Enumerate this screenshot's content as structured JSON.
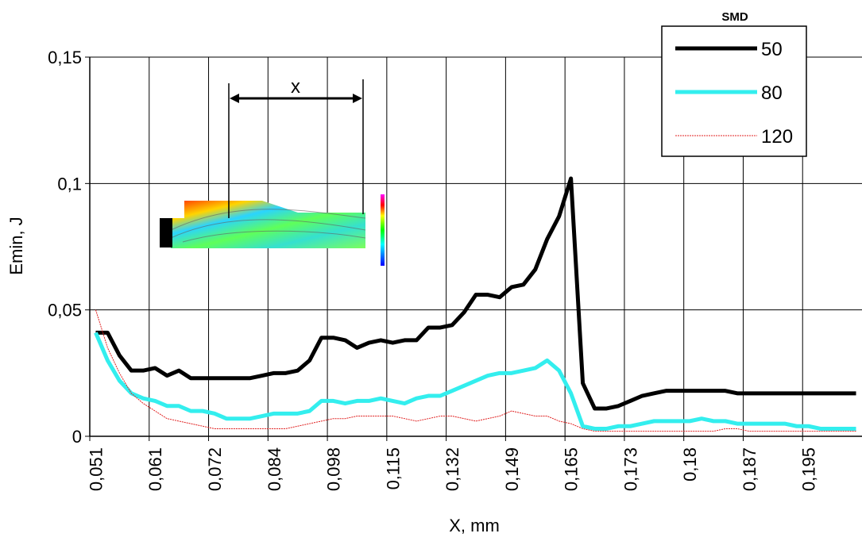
{
  "chart_data": {
    "type": "line",
    "y_label": "Emin, J",
    "x_label": "X, mm",
    "legend_title": "SMD",
    "legend": "upper-right",
    "annotation": "x",
    "grid": true,
    "categories": [
      "0,051",
      null,
      null,
      null,
      null,
      "0,061",
      null,
      null,
      null,
      null,
      "0,072",
      null,
      null,
      null,
      null,
      "0,084",
      null,
      null,
      null,
      null,
      "0,098",
      null,
      null,
      null,
      null,
      "0,115",
      null,
      null,
      null,
      null,
      "0,132",
      null,
      null,
      null,
      null,
      "0,149",
      null,
      null,
      null,
      null,
      "0,165",
      null,
      null,
      null,
      null,
      "0,173",
      null,
      null,
      null,
      null,
      "0,18",
      null,
      null,
      null,
      null,
      "0,187",
      null,
      null,
      null,
      null,
      "0,195",
      null,
      null,
      null,
      null
    ],
    "ylim": [
      0,
      0.15
    ],
    "yticks": [
      {
        "value": 0,
        "label": "0"
      },
      {
        "value": 0.05,
        "label": "0,05"
      },
      {
        "value": 0.1,
        "label": "0,1"
      },
      {
        "value": 0.15,
        "label": "0,15"
      }
    ],
    "series": [
      {
        "name": "50",
        "color": "#000000",
        "width": 5,
        "values": [
          0.041,
          0.041,
          0.032,
          0.026,
          0.026,
          0.027,
          0.024,
          0.026,
          0.023,
          0.023,
          0.023,
          0.023,
          0.023,
          0.023,
          0.024,
          0.025,
          0.025,
          0.026,
          0.03,
          0.039,
          0.039,
          0.038,
          0.035,
          0.037,
          0.038,
          0.037,
          0.038,
          0.038,
          0.043,
          0.043,
          0.044,
          0.049,
          0.056,
          0.056,
          0.055,
          0.059,
          0.06,
          0.066,
          0.078,
          0.087,
          0.102,
          0.021,
          0.011,
          0.011,
          0.012,
          0.014,
          0.016,
          0.017,
          0.018,
          0.018,
          0.018,
          0.018,
          0.018,
          0.018,
          0.017,
          0.017,
          0.017,
          0.017,
          0.017,
          0.017,
          0.017,
          0.017,
          0.017,
          0.017,
          0.017
        ]
      },
      {
        "name": "80",
        "color": "#33eeee",
        "width": 5,
        "values": [
          0.041,
          0.03,
          0.022,
          0.017,
          0.015,
          0.014,
          0.012,
          0.012,
          0.01,
          0.01,
          0.009,
          0.007,
          0.007,
          0.007,
          0.008,
          0.009,
          0.009,
          0.009,
          0.01,
          0.014,
          0.014,
          0.013,
          0.014,
          0.014,
          0.015,
          0.014,
          0.013,
          0.015,
          0.016,
          0.016,
          0.018,
          0.02,
          0.022,
          0.024,
          0.025,
          0.025,
          0.026,
          0.027,
          0.03,
          0.026,
          0.017,
          0.004,
          0.003,
          0.003,
          0.004,
          0.004,
          0.005,
          0.006,
          0.006,
          0.006,
          0.006,
          0.007,
          0.006,
          0.006,
          0.005,
          0.005,
          0.005,
          0.005,
          0.005,
          0.004,
          0.004,
          0.003,
          0.003,
          0.003,
          0.003
        ]
      },
      {
        "name": "120",
        "color": "#e02020",
        "width": 1,
        "values": [
          0.05,
          0.035,
          0.025,
          0.017,
          0.013,
          0.01,
          0.007,
          0.006,
          0.005,
          0.004,
          0.003,
          0.003,
          0.003,
          0.003,
          0.003,
          0.003,
          0.003,
          0.004,
          0.005,
          0.006,
          0.007,
          0.007,
          0.008,
          0.008,
          0.008,
          0.008,
          0.007,
          0.006,
          0.007,
          0.008,
          0.008,
          0.007,
          0.006,
          0.007,
          0.008,
          0.01,
          0.009,
          0.008,
          0.008,
          0.006,
          0.005,
          0.003,
          0.002,
          0.002,
          0.002,
          0.002,
          0.002,
          0.002,
          0.002,
          0.002,
          0.002,
          0.002,
          0.002,
          0.003,
          0.003,
          0.002,
          0.002,
          0.002,
          0.002,
          0.002,
          0.002,
          0.002,
          0.002,
          0.002,
          0.002
        ]
      }
    ]
  }
}
